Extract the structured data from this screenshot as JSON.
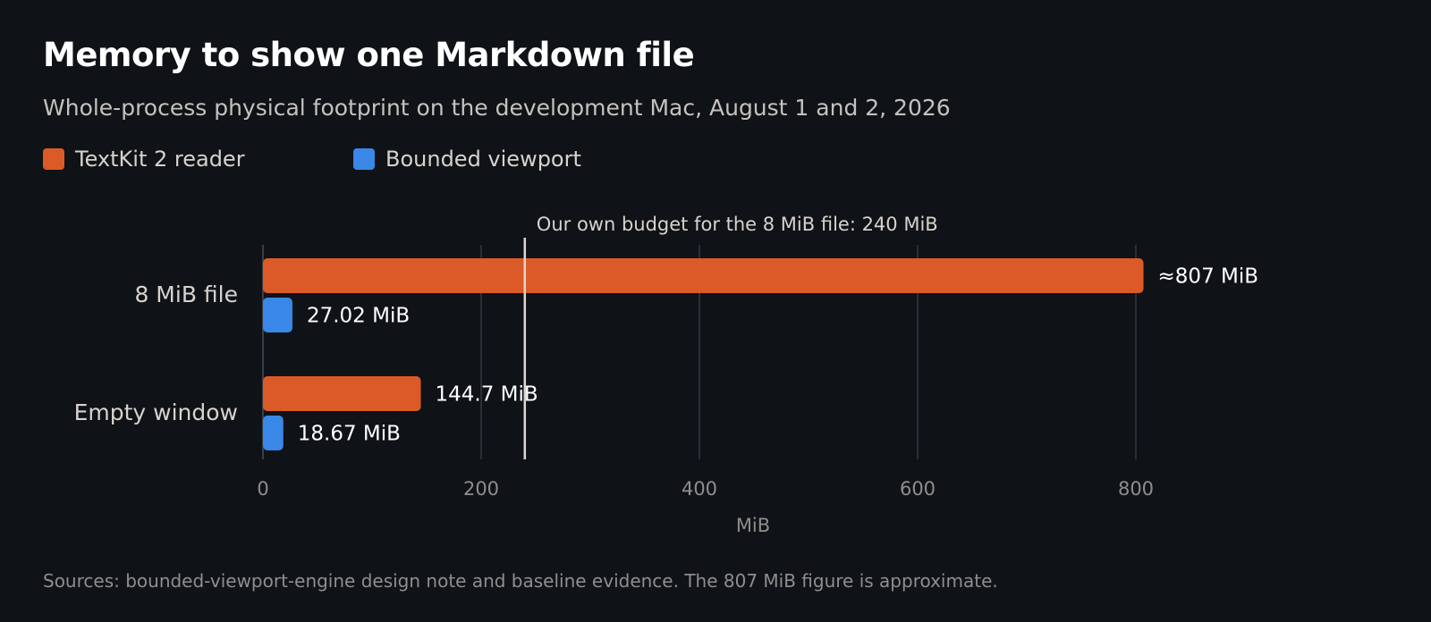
{
  "header": {
    "title": "Memory to show one Markdown file",
    "subtitle": "Whole-process physical footprint on the development Mac, August 1 and 2, 2026"
  },
  "footnote": "Sources: bounded-viewport-engine design note and baseline evidence. The 807 MiB figure is approximate.",
  "colors": {
    "background": "#0f1217",
    "textkit": "#dc5a28",
    "bounded": "#3987e6",
    "gridline": "#2a2e35",
    "budget_line": "#dcd8cc"
  },
  "chart_data": {
    "type": "bar",
    "orientation": "horizontal",
    "categories": [
      "8 MiB file",
      "Empty window"
    ],
    "series": [
      {
        "name": "TextKit 2 reader",
        "color": "#dc5a28",
        "values": [
          807,
          144.7
        ],
        "labels": [
          "≈807 MiB",
          "144.7 MiB"
        ]
      },
      {
        "name": "Bounded viewport",
        "color": "#3987e6",
        "values": [
          27.02,
          18.67
        ],
        "labels": [
          "27.02 MiB",
          "18.67 MiB"
        ]
      }
    ],
    "xlabel": "MiB",
    "xlim": [
      0,
      800
    ],
    "xticks": [
      0,
      200,
      400,
      600,
      800
    ],
    "grid": true,
    "legend": "top-left",
    "reference_line": {
      "value": 240,
      "label": "Our own budget for the 8 MiB file: 240 MiB"
    }
  }
}
